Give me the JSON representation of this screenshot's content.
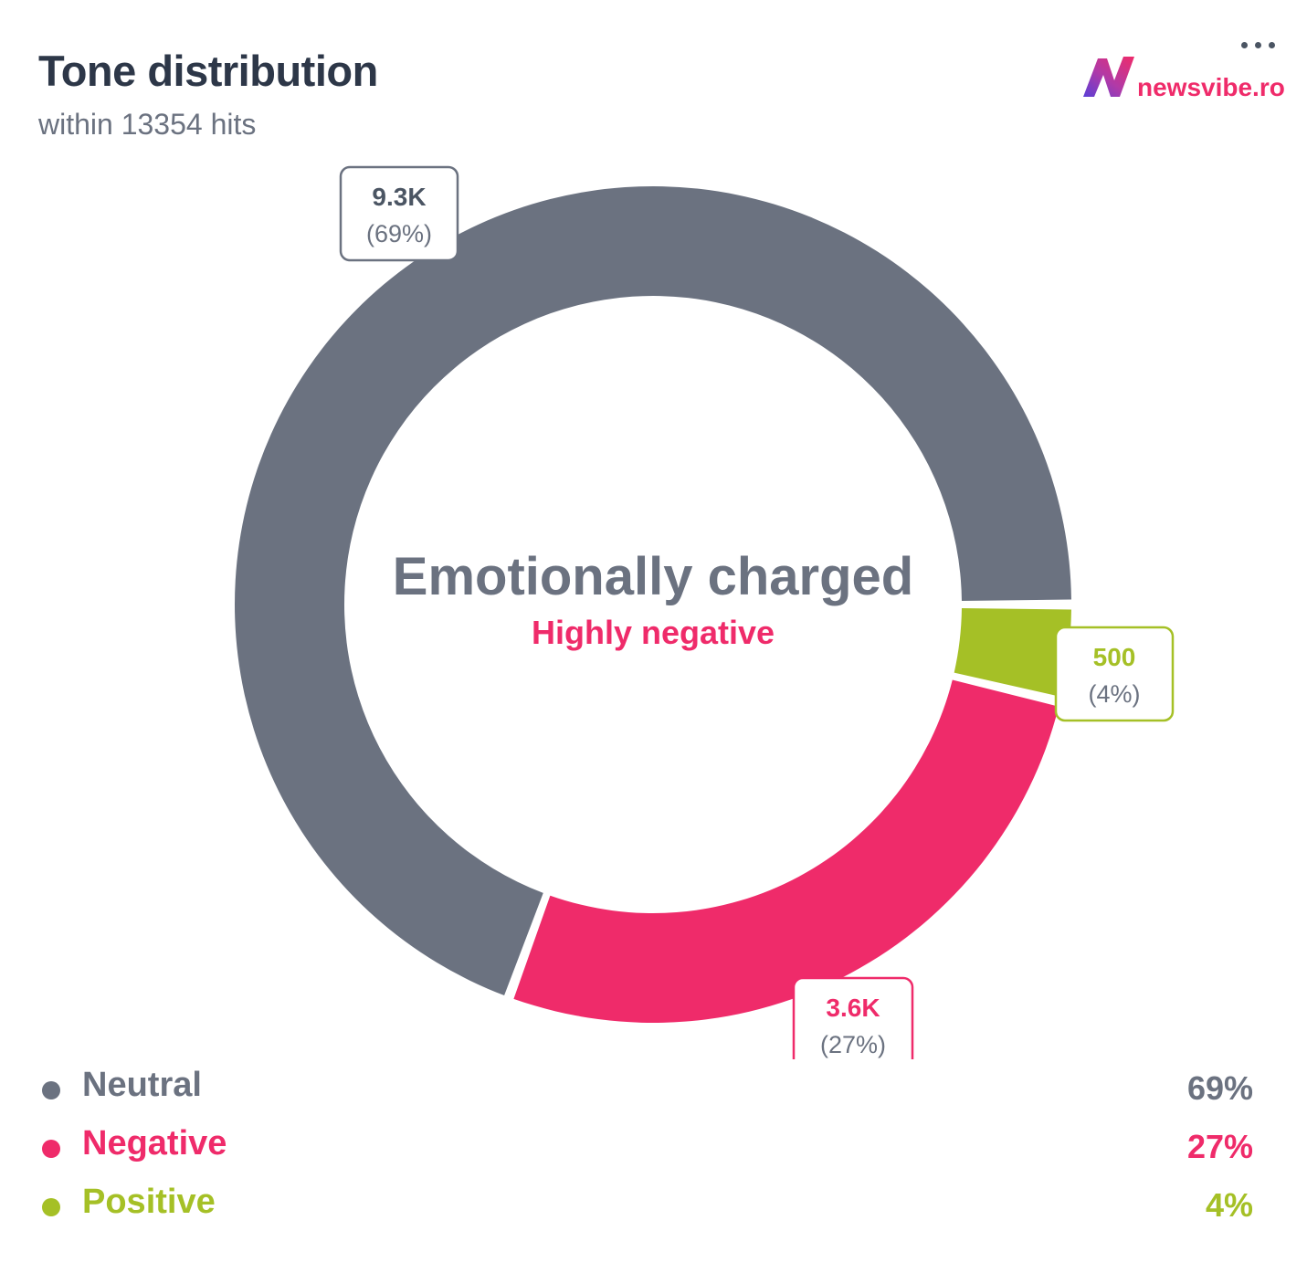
{
  "header": {
    "title": "Tone distribution",
    "subtitle": "within 13354 hits",
    "menu_icon": "more-horizontal-icon",
    "logo_text": "newsvibe.ro",
    "logo_icon": "newsvibe-logo-icon"
  },
  "center": {
    "main": "Emotionally charged",
    "sub": "Highly negative"
  },
  "colors": {
    "neutral": "#6b7280",
    "negative": "#ef2b6a",
    "positive": "#a5c026",
    "text_dark": "#2d3748"
  },
  "chart_data": {
    "type": "pie",
    "categories": [
      "Neutral",
      "Negative",
      "Positive"
    ],
    "values": [
      9300,
      3600,
      500
    ],
    "percent_labels": [
      "69%",
      "27%",
      "4%"
    ],
    "data_labels": [
      "9.3K",
      "3.6K",
      "500"
    ],
    "data_label_percents": [
      "(69%)",
      "(27%)",
      "(4%)"
    ],
    "colors": [
      "#6b7280",
      "#ef2b6a",
      "#a5c026"
    ],
    "donut": true,
    "legend": "bottom"
  }
}
